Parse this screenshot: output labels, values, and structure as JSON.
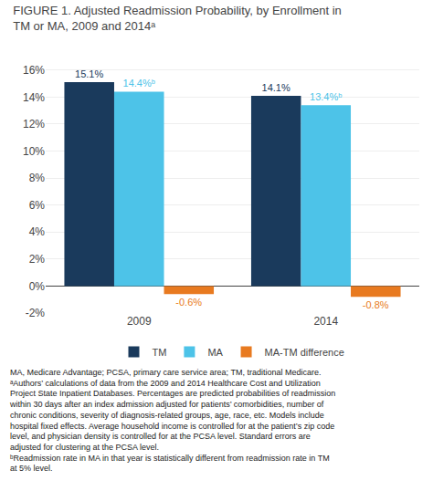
{
  "chart_data": {
    "type": "bar",
    "title": "FIGURE 1. Adjusted Readmission Probability, by Enrollment in TM or MA, 2009 and 2014ᵃ",
    "categories": [
      "2009",
      "2014"
    ],
    "series": [
      {
        "name": "TM",
        "color": "#1a3a5c",
        "values": [
          15.1,
          14.1
        ],
        "value_labels": [
          "15.1%",
          "14.1%"
        ]
      },
      {
        "name": "MA",
        "color": "#4dc3e8",
        "values": [
          14.4,
          13.4
        ],
        "value_labels": [
          "14.4%ᵇ",
          "13.4%ᵇ"
        ]
      },
      {
        "name": "MA-TM difference",
        "color": "#e87a20",
        "values": [
          -0.6,
          -0.8
        ],
        "value_labels": [
          "-0.6%",
          "-0.8%"
        ]
      }
    ],
    "ylim": [
      -2,
      17
    ],
    "yticks": [
      {
        "value": -2,
        "label": "-2%"
      },
      {
        "value": 0,
        "label": "0%"
      },
      {
        "value": 2,
        "label": "2%"
      },
      {
        "value": 4,
        "label": "4%"
      },
      {
        "value": 6,
        "label": "6%"
      },
      {
        "value": 8,
        "label": "8%"
      },
      {
        "value": 10,
        "label": "10%"
      },
      {
        "value": 12,
        "label": "12%"
      },
      {
        "value": 14,
        "label": "14%"
      },
      {
        "value": 16,
        "label": "16%"
      }
    ],
    "grid": true,
    "data_labels": true,
    "legend": "bottom",
    "annotations": [
      "MA, Medicare Advantage; PCSA, primary care service area; TM, traditional Medicare.",
      "ᵃAuthors’ calculations of data from the 2009 and 2014 Healthcare Cost and Utilization Project State Inpatient Databases. Percentages are predicted probabilities of readmission within 30 days after an index admission adjusted for patients’ comorbidities, number of chronic conditions, severity of diagnosis-related groups, age, race, etc. Models include hospital fixed effects. Average household income is controlled for at the patient’s zip code level, and physician density is controlled for at the PCSA level. Standard errors are adjusted for clustering at the PCSA level.",
      "ᵇReadmission rate in MA in that year is statistically different from readmission rate in TM at 5% level."
    ]
  }
}
